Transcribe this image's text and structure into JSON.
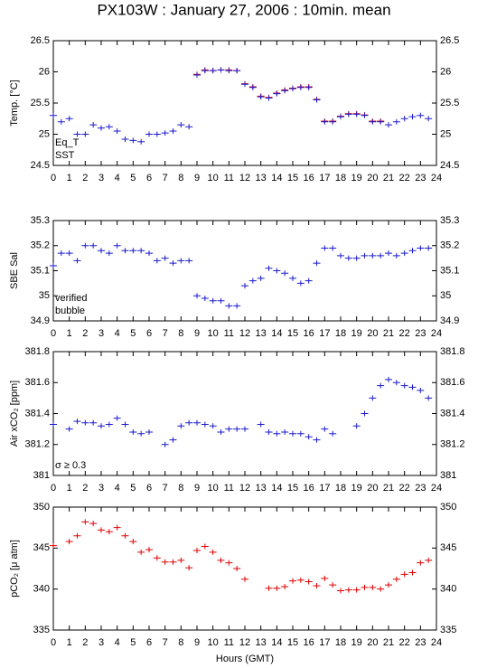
{
  "chart_data": [
    {
      "type": "scatter",
      "title": "PX103W : January 27, 2006 : 10min. mean",
      "ylabel": "Temp. [°C]",
      "x": [
        0,
        0.5,
        1,
        1.5,
        2,
        2.5,
        3,
        3.5,
        4,
        4.5,
        5,
        5.5,
        6,
        6.5,
        7,
        7.5,
        8,
        8.5,
        9,
        9.5,
        10,
        10.5,
        11,
        11.5,
        12,
        12.5,
        13,
        13.5,
        14,
        14.5,
        15,
        15.5,
        16,
        16.5,
        17,
        17.5,
        18,
        18.5,
        19,
        19.5,
        20,
        20.5,
        21,
        21.5,
        22,
        22.5,
        23,
        23.5
      ],
      "series": [
        {
          "name": "Eq_T",
          "color": "#dd0000",
          "values": [
            null,
            null,
            null,
            null,
            null,
            null,
            null,
            null,
            null,
            null,
            null,
            null,
            null,
            null,
            null,
            null,
            null,
            null,
            25.96,
            26.03,
            26.02,
            26.03,
            26.03,
            26.02,
            25.81,
            25.76,
            25.61,
            25.59,
            25.66,
            25.71,
            25.74,
            25.76,
            25.76,
            25.56,
            25.21,
            25.21,
            25.29,
            25.33,
            25.33,
            25.31,
            25.21,
            25.21,
            null,
            null,
            null,
            null,
            null,
            null
          ]
        },
        {
          "name": "SST",
          "color": "#1a1acc",
          "values": [
            25.3,
            25.2,
            25.25,
            25.0,
            25.0,
            25.15,
            25.1,
            25.12,
            25.05,
            24.92,
            24.9,
            24.88,
            25.0,
            25.0,
            25.02,
            25.05,
            25.15,
            25.12,
            25.95,
            26.02,
            26.02,
            26.03,
            26.02,
            26.02,
            25.8,
            25.75,
            25.6,
            25.58,
            25.65,
            25.7,
            25.73,
            25.75,
            25.75,
            25.55,
            25.2,
            25.2,
            25.28,
            25.32,
            25.32,
            25.3,
            25.2,
            25.2,
            25.15,
            25.2,
            25.25,
            25.28,
            25.3,
            25.25
          ]
        }
      ],
      "xlim": [
        0,
        24
      ],
      "xticks": [
        0,
        1,
        2,
        3,
        4,
        5,
        6,
        7,
        8,
        9,
        10,
        11,
        12,
        13,
        14,
        15,
        16,
        17,
        18,
        19,
        20,
        21,
        22,
        23,
        24
      ],
      "ylim": [
        24.5,
        26.5
      ],
      "yticks": [
        24.5,
        25,
        25.5,
        26,
        26.5
      ]
    },
    {
      "type": "scatter",
      "ylabel": "SBE Sal",
      "x": [
        0,
        0.5,
        1,
        1.5,
        2,
        2.5,
        3,
        3.5,
        4,
        4.5,
        5,
        5.5,
        6,
        6.5,
        7,
        7.5,
        8,
        8.5,
        9,
        9.5,
        10,
        10.5,
        11,
        11.5,
        12,
        12.5,
        13,
        13.5,
        14,
        14.5,
        15,
        15.5,
        16,
        16.5,
        17,
        17.5,
        18,
        18.5,
        19,
        19.5,
        20,
        20.5,
        21,
        21.5,
        22,
        22.5,
        23,
        23.5
      ],
      "series": [
        {
          "name": "verified",
          "color": "#1a1acc",
          "values": [
            35.12,
            35.17,
            35.17,
            35.14,
            35.2,
            35.2,
            35.18,
            35.17,
            35.2,
            35.18,
            35.18,
            35.18,
            35.17,
            35.14,
            35.15,
            35.13,
            35.14,
            35.14,
            35.0,
            34.99,
            34.98,
            34.98,
            34.96,
            34.96,
            35.04,
            35.06,
            35.07,
            35.11,
            35.1,
            35.09,
            35.07,
            35.05,
            35.06,
            35.13,
            35.19,
            35.19,
            35.16,
            35.15,
            35.15,
            35.16,
            35.16,
            35.16,
            35.17,
            35.16,
            35.17,
            35.18,
            35.19,
            35.19
          ]
        }
      ],
      "annotation": {
        "text": "bubble",
        "color": "#cc33cc"
      },
      "xlim": [
        0,
        24
      ],
      "xticks": [
        0,
        1,
        2,
        3,
        4,
        5,
        6,
        7,
        8,
        9,
        10,
        11,
        12,
        13,
        14,
        15,
        16,
        17,
        18,
        19,
        20,
        21,
        22,
        23,
        24
      ],
      "ylim": [
        34.9,
        35.3
      ],
      "yticks": [
        34.9,
        35,
        35.1,
        35.2,
        35.3
      ]
    },
    {
      "type": "scatter",
      "ylabel": "Air xCO₂ [ppm]",
      "x": [
        0,
        0.5,
        1,
        1.5,
        2,
        2.5,
        3,
        3.5,
        4,
        4.5,
        5,
        5.5,
        6,
        6.5,
        7,
        7.5,
        8,
        8.5,
        9,
        9.5,
        10,
        10.5,
        11,
        11.5,
        12,
        12.5,
        13,
        13.5,
        14,
        14.5,
        15,
        15.5,
        16,
        16.5,
        17,
        17.5,
        18,
        18.5,
        19,
        19.5,
        20,
        20.5,
        21,
        21.5,
        22,
        22.5,
        23,
        23.5
      ],
      "series": [
        {
          "name": "xCO2",
          "color": "#1a1acc",
          "values": [
            381.33,
            null,
            381.3,
            381.35,
            381.34,
            381.34,
            381.32,
            381.33,
            381.37,
            381.33,
            381.28,
            381.27,
            381.28,
            null,
            381.2,
            381.23,
            381.32,
            381.34,
            381.34,
            381.33,
            381.32,
            381.28,
            381.3,
            381.3,
            381.3,
            null,
            381.33,
            381.28,
            381.27,
            381.28,
            381.27,
            381.27,
            381.25,
            381.23,
            381.3,
            381.27,
            null,
            null,
            381.32,
            381.4,
            381.5,
            381.58,
            381.62,
            381.6,
            381.58,
            381.57,
            381.55,
            381.5
          ]
        }
      ],
      "annotation": {
        "text": "σ ≥ 0.3",
        "color": "#cc33cc"
      },
      "xlim": [
        0,
        24
      ],
      "xticks": [
        0,
        1,
        2,
        3,
        4,
        5,
        6,
        7,
        8,
        9,
        10,
        11,
        12,
        13,
        14,
        15,
        16,
        17,
        18,
        19,
        20,
        21,
        22,
        23,
        24
      ],
      "ylim": [
        381,
        381.8
      ],
      "yticks": [
        381,
        381.2,
        381.4,
        381.6,
        381.8
      ]
    },
    {
      "type": "scatter",
      "ylabel": "pCO₂ [μ atm]",
      "xlabel": "Hours (GMT)",
      "x": [
        0,
        0.5,
        1,
        1.5,
        2,
        2.5,
        3,
        3.5,
        4,
        4.5,
        5,
        5.5,
        6,
        6.5,
        7,
        7.5,
        8,
        8.5,
        9,
        9.5,
        10,
        10.5,
        11,
        11.5,
        12,
        12.5,
        13,
        13.5,
        14,
        14.5,
        15,
        15.5,
        16,
        16.5,
        17,
        17.5,
        18,
        18.5,
        19,
        19.5,
        20,
        20.5,
        21,
        21.5,
        22,
        22.5,
        23,
        23.5
      ],
      "series": [
        {
          "name": "pCO2",
          "color": "#dd0000",
          "values": [
            345.3,
            null,
            345.8,
            346.5,
            348.2,
            348.0,
            347.2,
            347.0,
            347.5,
            346.5,
            345.8,
            344.5,
            344.8,
            343.8,
            343.3,
            343.3,
            343.5,
            342.6,
            344.7,
            345.2,
            344.5,
            343.5,
            343.2,
            342.5,
            341.2,
            null,
            null,
            340.1,
            340.1,
            340.3,
            341.0,
            341.1,
            340.9,
            340.4,
            341.3,
            340.5,
            339.8,
            339.9,
            339.9,
            340.2,
            340.2,
            340.0,
            340.5,
            341.2,
            341.8,
            342.0,
            343.2,
            343.5
          ]
        }
      ],
      "xlim": [
        0,
        24
      ],
      "xticks": [
        0,
        1,
        2,
        3,
        4,
        5,
        6,
        7,
        8,
        9,
        10,
        11,
        12,
        13,
        14,
        15,
        16,
        17,
        18,
        19,
        20,
        21,
        22,
        23,
        24
      ],
      "ylim": [
        335,
        350
      ],
      "yticks": [
        335,
        340,
        345,
        350
      ]
    }
  ]
}
